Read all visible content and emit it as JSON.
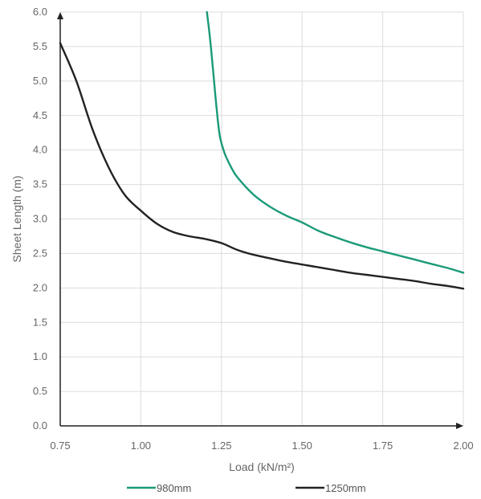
{
  "chart_data": {
    "type": "line",
    "title": "",
    "xlabel": "Load (kN/m²)",
    "ylabel": "Sheet Length (m)",
    "xlim": [
      0.75,
      2.0
    ],
    "ylim": [
      0.0,
      6.0
    ],
    "x_ticks": [
      "0.75",
      "1.00",
      "1.25",
      "1.50",
      "1.75",
      "2.00"
    ],
    "y_ticks": [
      "0.0",
      "0.5",
      "1.0",
      "1.5",
      "2.0",
      "2.5",
      "3.0",
      "3.5",
      "4.0",
      "4.5",
      "5.0",
      "5.5",
      "6.0"
    ],
    "grid": true,
    "legend_position": "bottom",
    "series": [
      {
        "name": "980mm",
        "color": "#1a9a78",
        "points": [
          [
            1.205,
            6.0
          ],
          [
            1.215,
            5.6
          ],
          [
            1.225,
            5.1
          ],
          [
            1.235,
            4.6
          ],
          [
            1.245,
            4.2
          ],
          [
            1.26,
            3.95
          ],
          [
            1.28,
            3.75
          ],
          [
            1.3,
            3.6
          ],
          [
            1.35,
            3.35
          ],
          [
            1.4,
            3.18
          ],
          [
            1.45,
            3.05
          ],
          [
            1.5,
            2.95
          ],
          [
            1.55,
            2.83
          ],
          [
            1.6,
            2.74
          ],
          [
            1.65,
            2.66
          ],
          [
            1.7,
            2.59
          ],
          [
            1.75,
            2.53
          ],
          [
            1.8,
            2.47
          ],
          [
            1.85,
            2.41
          ],
          [
            1.9,
            2.35
          ],
          [
            1.95,
            2.29
          ],
          [
            2.0,
            2.22
          ]
        ]
      },
      {
        "name": "1250mm",
        "color": "#222222",
        "points": [
          [
            0.75,
            5.55
          ],
          [
            0.8,
            5.0
          ],
          [
            0.85,
            4.3
          ],
          [
            0.9,
            3.75
          ],
          [
            0.95,
            3.35
          ],
          [
            1.0,
            3.12
          ],
          [
            1.05,
            2.93
          ],
          [
            1.1,
            2.81
          ],
          [
            1.15,
            2.75
          ],
          [
            1.2,
            2.71
          ],
          [
            1.25,
            2.65
          ],
          [
            1.3,
            2.55
          ],
          [
            1.35,
            2.48
          ],
          [
            1.4,
            2.43
          ],
          [
            1.45,
            2.38
          ],
          [
            1.5,
            2.34
          ],
          [
            1.55,
            2.3
          ],
          [
            1.6,
            2.26
          ],
          [
            1.65,
            2.22
          ],
          [
            1.7,
            2.19
          ],
          [
            1.75,
            2.16
          ],
          [
            1.8,
            2.13
          ],
          [
            1.85,
            2.1
          ],
          [
            1.9,
            2.06
          ],
          [
            1.95,
            2.03
          ],
          [
            2.0,
            1.99
          ]
        ]
      }
    ]
  }
}
